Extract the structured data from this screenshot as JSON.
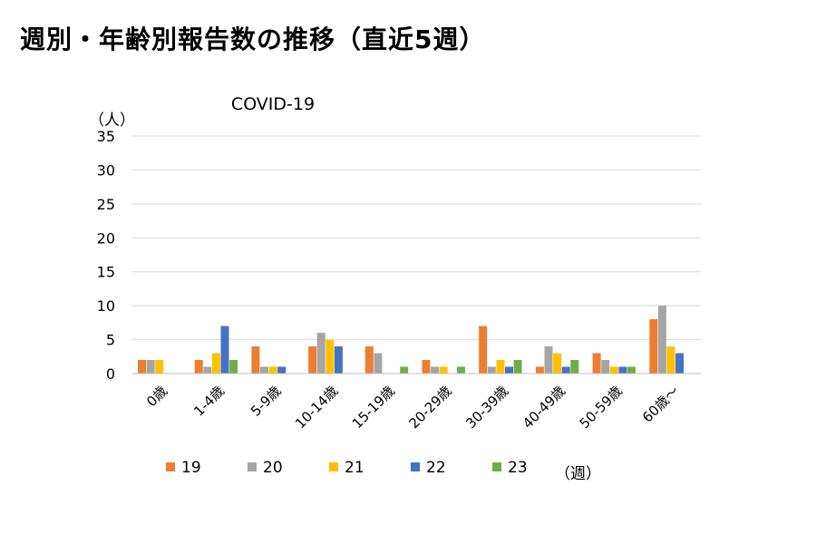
{
  "page": {
    "title": "週別・年齢別報告数の推移（直近5週）"
  },
  "chart_data": {
    "type": "bar",
    "title": "COVID-19",
    "ylabel": "（人）",
    "xlabel": "（週）",
    "ylim": [
      0,
      35
    ],
    "yticks": [
      0,
      5,
      10,
      15,
      20,
      25,
      30,
      35
    ],
    "grid": "horizontal",
    "legend_position": "bottom",
    "categories": [
      "0歳",
      "1-4歳",
      "5-9歳",
      "10-14歳",
      "15-19歳",
      "20-29歳",
      "30-39歳",
      "40-49歳",
      "50-59歳",
      "60歳～"
    ],
    "series": [
      {
        "name": "19",
        "color": "#ED7D31",
        "values": [
          2,
          2,
          4,
          4,
          4,
          2,
          7,
          1,
          3,
          8
        ]
      },
      {
        "name": "20",
        "color": "#A5A5A5",
        "values": [
          2,
          1,
          1,
          6,
          3,
          1,
          1,
          4,
          2,
          10
        ]
      },
      {
        "name": "21",
        "color": "#FFC000",
        "values": [
          2,
          3,
          1,
          5,
          0,
          1,
          2,
          3,
          1,
          4
        ]
      },
      {
        "name": "22",
        "color": "#4472C4",
        "values": [
          0,
          7,
          1,
          4,
          0,
          0,
          1,
          1,
          1,
          3
        ]
      },
      {
        "name": "23",
        "color": "#70AD47",
        "values": [
          0,
          2,
          0,
          0,
          1,
          1,
          2,
          2,
          1,
          0
        ]
      }
    ]
  }
}
